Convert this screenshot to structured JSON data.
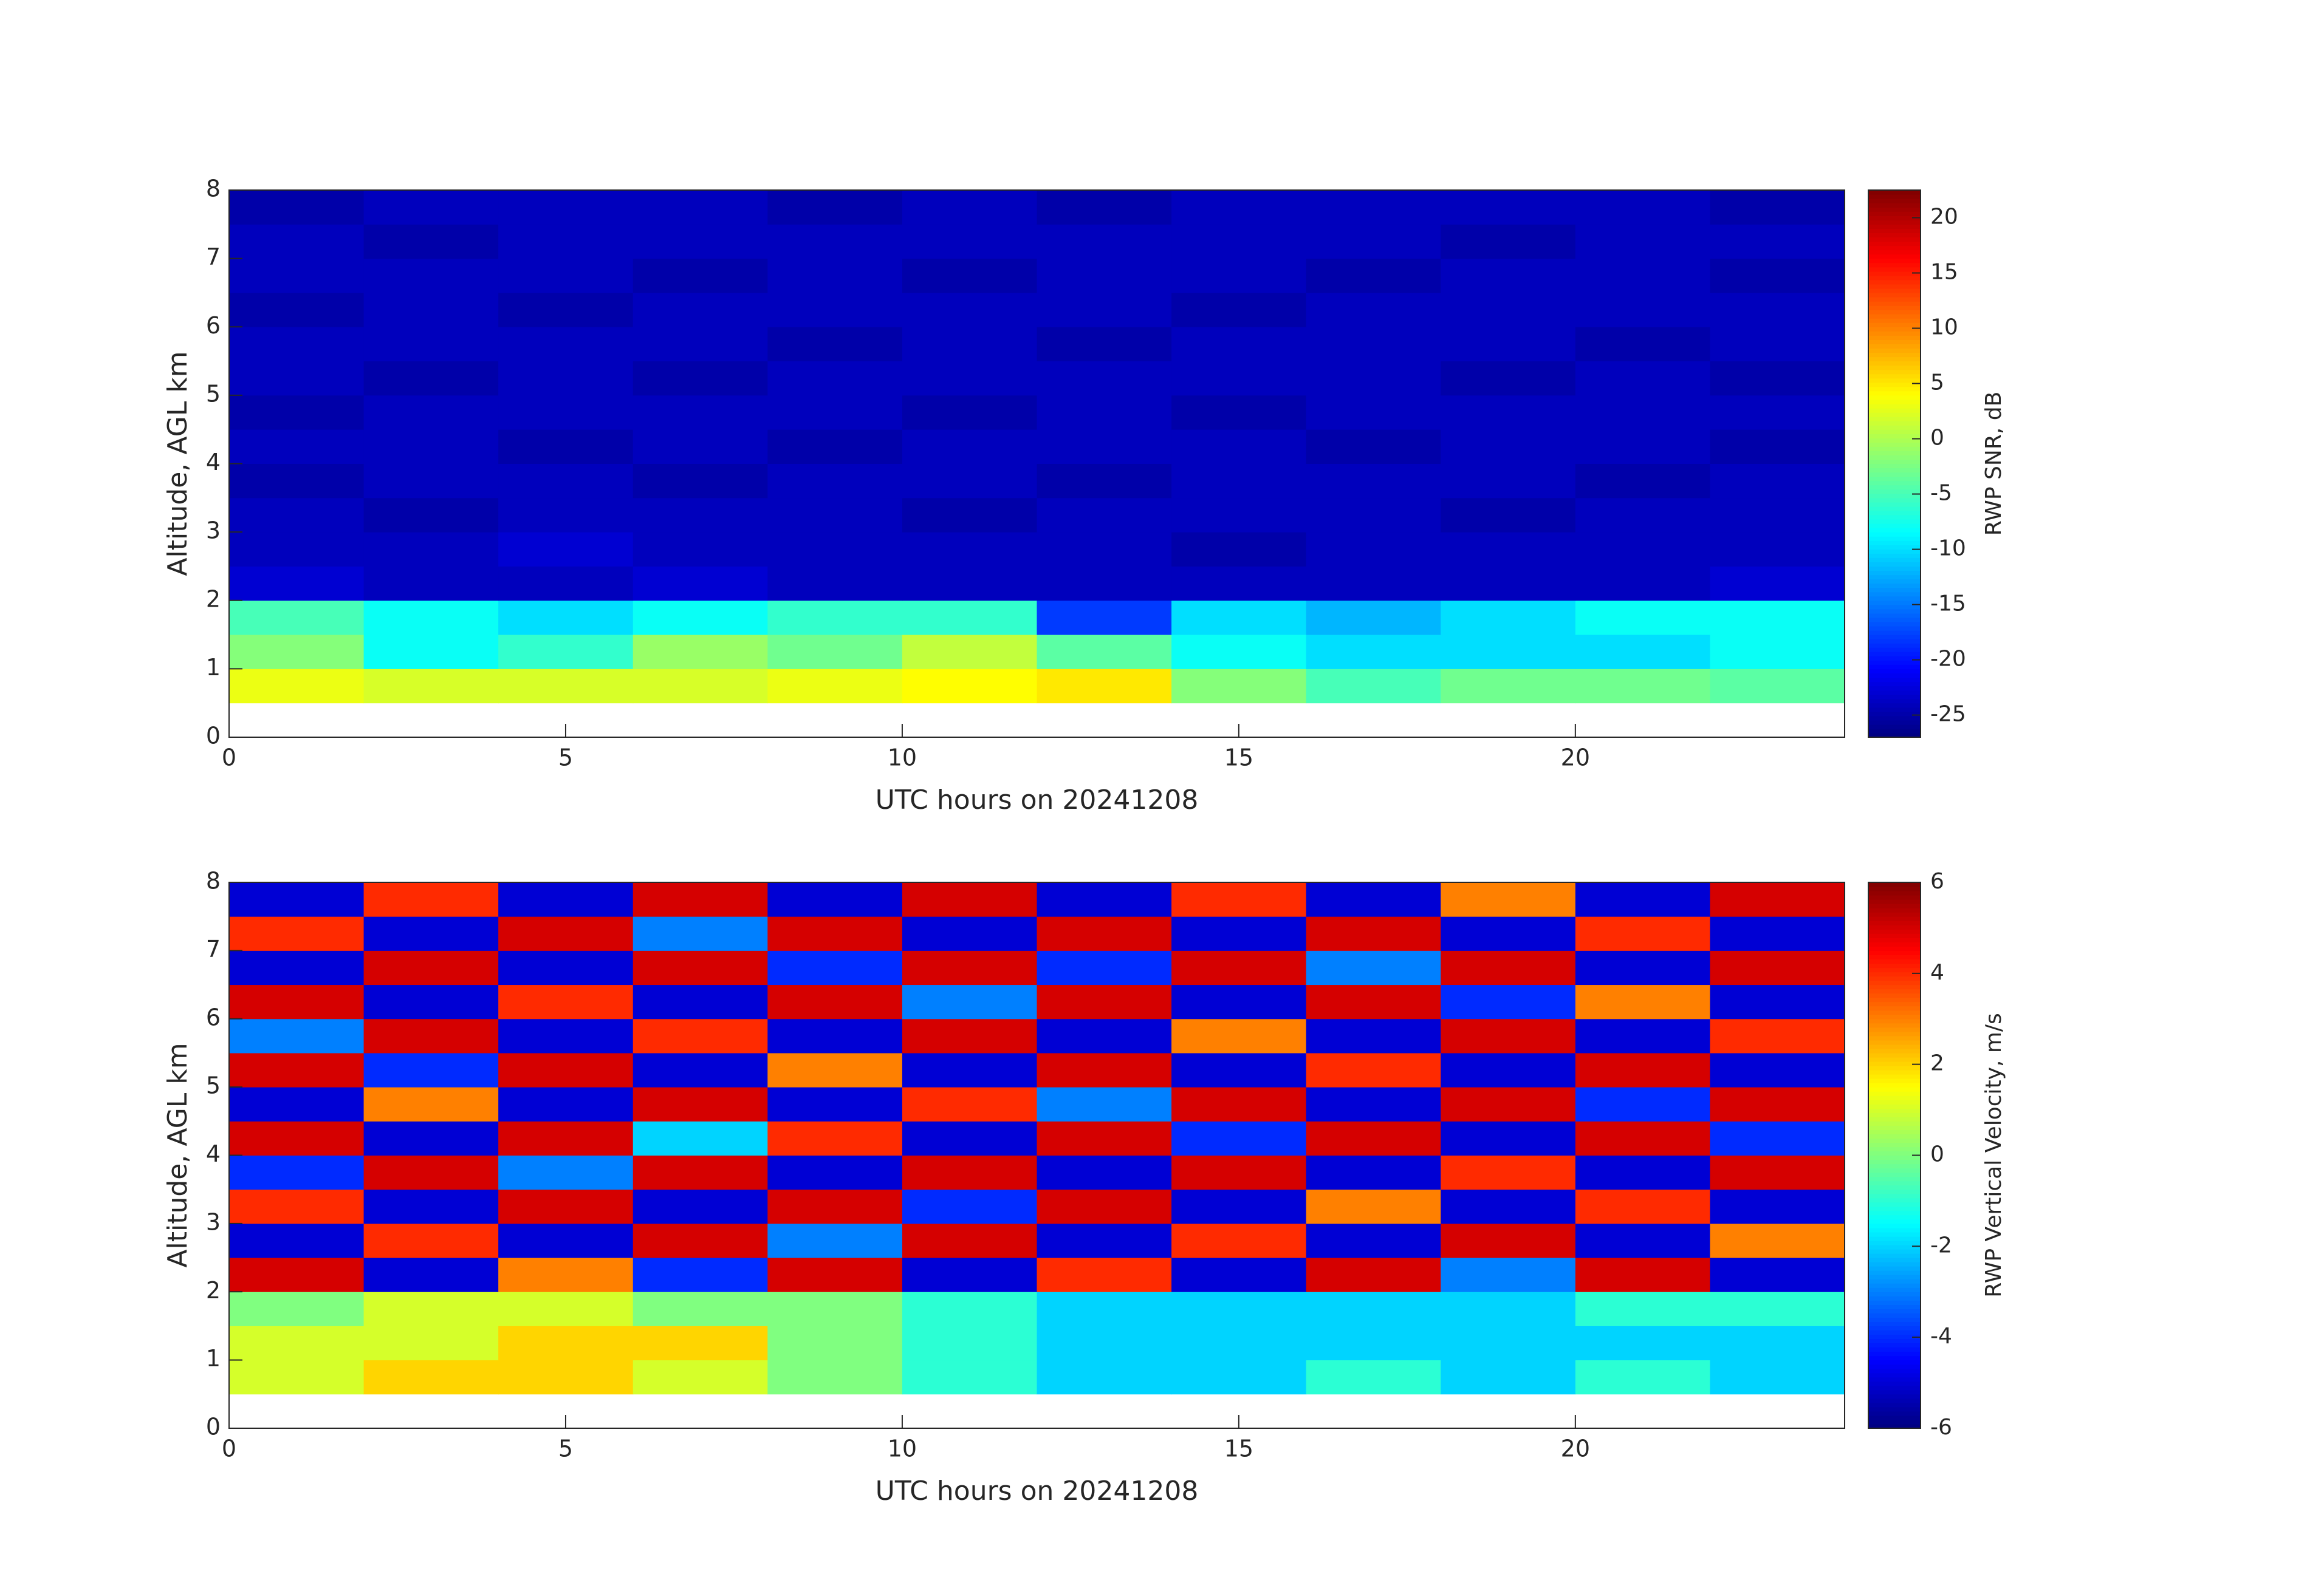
{
  "chart_data": [
    {
      "type": "heatmap",
      "colormap": "jet",
      "xlabel": "UTC hours on 20241208",
      "ylabel": "Altitude, AGL km",
      "colorbar_label": "RWP SNR, dB",
      "x": [
        1,
        3,
        5,
        7,
        9,
        11,
        13,
        15,
        17,
        19,
        21,
        23
      ],
      "y": [
        0.75,
        1.25,
        1.75,
        2.25,
        2.75,
        3.25,
        3.75,
        4.25,
        4.75,
        5.25,
        5.75,
        6.25,
        6.75,
        7.25,
        7.75
      ],
      "z": [
        [
          3,
          2,
          2,
          2,
          3,
          4,
          5,
          -2,
          -5,
          -3,
          -3,
          -4
        ],
        [
          -2,
          -8,
          -6,
          -1,
          -3,
          1,
          -4,
          -8,
          -10,
          -10,
          -10,
          -8
        ],
        [
          -5,
          -8,
          -10,
          -8,
          -6,
          -6,
          -18,
          -10,
          -12,
          -10,
          -8,
          -8
        ],
        [
          -23,
          -24,
          -24,
          -23,
          -24,
          -24,
          -24,
          -24,
          -24,
          -24,
          -24,
          -23
        ],
        [
          -24,
          -24,
          -23,
          -24,
          -24,
          -24,
          -24,
          -25,
          -24,
          -24,
          -24,
          -24
        ],
        [
          -24,
          -25,
          -24,
          -24,
          -24,
          -25,
          -24,
          -24,
          -24,
          -25,
          -24,
          -24
        ],
        [
          -25,
          -24,
          -24,
          -25,
          -24,
          -24,
          -25,
          -24,
          -24,
          -24,
          -25,
          -24
        ],
        [
          -24,
          -24,
          -25,
          -24,
          -25,
          -24,
          -24,
          -24,
          -25,
          -24,
          -24,
          -25
        ],
        [
          -25,
          -24,
          -24,
          -24,
          -24,
          -25,
          -24,
          -25,
          -24,
          -24,
          -24,
          -24
        ],
        [
          -24,
          -25,
          -24,
          -25,
          -24,
          -24,
          -24,
          -24,
          -24,
          -25,
          -24,
          -25
        ],
        [
          -24,
          -24,
          -24,
          -24,
          -25,
          -24,
          -25,
          -24,
          -24,
          -24,
          -25,
          -24
        ],
        [
          -25,
          -24,
          -25,
          -24,
          -24,
          -24,
          -24,
          -25,
          -24,
          -24,
          -24,
          -24
        ],
        [
          -24,
          -24,
          -24,
          -25,
          -24,
          -25,
          -24,
          -24,
          -25,
          -24,
          -24,
          -25
        ],
        [
          -24,
          -25,
          -24,
          -24,
          -24,
          -24,
          -24,
          -24,
          -24,
          -25,
          -24,
          -24
        ],
        [
          -25,
          -24,
          -24,
          -24,
          -25,
          -24,
          -25,
          -24,
          -24,
          -24,
          -24,
          -25
        ]
      ],
      "xlim": [
        0,
        24
      ],
      "ylim": [
        0,
        8
      ],
      "xticks": [
        0,
        5,
        10,
        15,
        20
      ],
      "yticks": [
        0,
        1,
        2,
        3,
        4,
        5,
        6,
        7,
        8
      ],
      "clim": [
        -27,
        22.5
      ],
      "cticks": [
        -25,
        -20,
        -15,
        -10,
        -5,
        0,
        5,
        10,
        15,
        20
      ]
    },
    {
      "type": "heatmap",
      "colormap": "jet",
      "xlabel": "UTC hours on 20241208",
      "ylabel": "Altitude, AGL km",
      "colorbar_label": "RWP Vertical Velocity, m/s",
      "x": [
        1,
        3,
        5,
        7,
        9,
        11,
        13,
        15,
        17,
        19,
        21,
        23
      ],
      "y": [
        0.75,
        1.25,
        1.75,
        2.25,
        2.75,
        3.25,
        3.75,
        4.25,
        4.75,
        5.25,
        5.75,
        6.25,
        6.75,
        7.25,
        7.75
      ],
      "z": [
        [
          1,
          2,
          2,
          1,
          0,
          -1,
          -2,
          -2,
          -1,
          -2,
          -1,
          -2
        ],
        [
          1,
          1,
          2,
          2,
          0,
          -1,
          -2,
          -2,
          -2,
          -2,
          -2,
          -2
        ],
        [
          0,
          1,
          1,
          0,
          0,
          -1,
          -2,
          -2,
          -2,
          -2,
          -1,
          -1
        ],
        [
          5,
          -5,
          3,
          -4,
          5,
          -5,
          4,
          -5,
          5,
          -3,
          5,
          -5
        ],
        [
          -5,
          4,
          -5,
          5,
          -3,
          5,
          -5,
          4,
          -5,
          5,
          -5,
          3
        ],
        [
          4,
          -5,
          5,
          -5,
          5,
          -4,
          5,
          -5,
          3,
          -5,
          4,
          -5
        ],
        [
          -4,
          5,
          -3,
          5,
          -5,
          5,
          -5,
          5,
          -5,
          4,
          -5,
          5
        ],
        [
          5,
          -5,
          5,
          -2,
          4,
          -5,
          5,
          -4,
          5,
          -5,
          5,
          -4
        ],
        [
          -5,
          3,
          -5,
          5,
          -5,
          4,
          -3,
          5,
          -5,
          5,
          -4,
          5
        ],
        [
          5,
          -4,
          5,
          -5,
          3,
          -5,
          5,
          -5,
          4,
          -5,
          5,
          -5
        ],
        [
          -3,
          5,
          -5,
          4,
          -5,
          5,
          -5,
          3,
          -5,
          5,
          -5,
          4
        ],
        [
          5,
          -5,
          4,
          -5,
          5,
          -3,
          5,
          -5,
          5,
          -4,
          3,
          -5
        ],
        [
          -5,
          5,
          -5,
          5,
          -4,
          5,
          -4,
          5,
          -3,
          5,
          -5,
          5
        ],
        [
          4,
          -5,
          5,
          -3,
          5,
          -5,
          5,
          -5,
          5,
          -5,
          4,
          -5
        ],
        [
          -5,
          4,
          -5,
          5,
          -5,
          5,
          -5,
          4,
          -5,
          3,
          -5,
          5
        ]
      ],
      "xlim": [
        0,
        24
      ],
      "ylim": [
        0,
        8
      ],
      "xticks": [
        0,
        5,
        10,
        15,
        20
      ],
      "yticks": [
        0,
        1,
        2,
        3,
        4,
        5,
        6,
        7,
        8
      ],
      "clim": [
        -6,
        6
      ],
      "cticks": [
        -6,
        -4,
        -2,
        0,
        2,
        4,
        6
      ]
    }
  ]
}
